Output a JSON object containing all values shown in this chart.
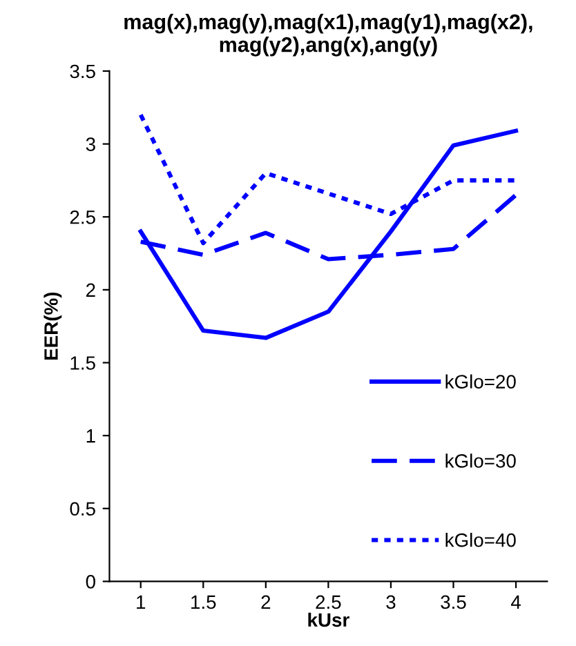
{
  "chart_data": {
    "type": "line",
    "title": "mag(x),mag(y),mag(x1),mag(y1),mag(x2),\nmag(y2),ang(x),ang(y)",
    "xlabel": "kUsr",
    "ylabel": "EER(%)",
    "categories": [
      "1",
      "1.5",
      "2",
      "2.5",
      "3",
      "3.5",
      "4"
    ],
    "series": [
      {
        "name": "kGlo=20",
        "color": "#0000ff",
        "line_style": "solid",
        "values": [
          2.4,
          1.72,
          1.67,
          1.85,
          2.4,
          2.99,
          3.09
        ]
      },
      {
        "name": "kGlo=30",
        "color": "#0000ff",
        "line_style": "dashed",
        "values": [
          2.33,
          2.24,
          2.39,
          2.21,
          2.24,
          2.28,
          2.65
        ]
      },
      {
        "name": "kGlo=40",
        "color": "#0000ff",
        "line_style": "dotted",
        "values": [
          3.2,
          2.32,
          2.8,
          2.66,
          2.52,
          2.75,
          2.75
        ]
      }
    ],
    "ylim": [
      0,
      3.5
    ],
    "yticks": [
      0,
      0.5,
      1,
      1.5,
      2,
      2.5,
      3,
      3.5
    ],
    "grid": false,
    "legend": "bottom right",
    "marker": "none"
  }
}
